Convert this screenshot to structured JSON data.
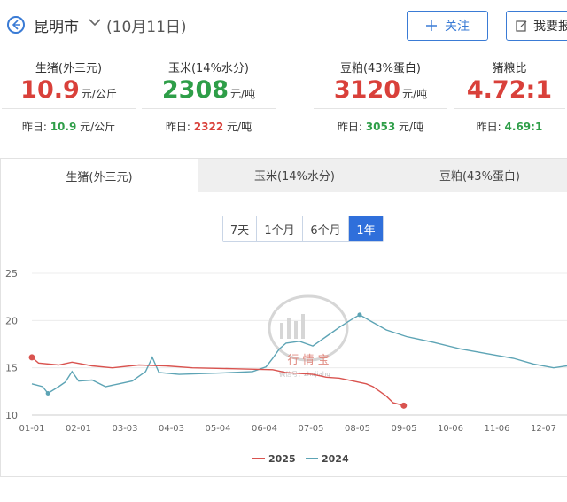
{
  "header": {
    "city": "昆明市",
    "date": "(10月11日)",
    "follow_label": "关注",
    "report_label": "我要报"
  },
  "prices": [
    {
      "name": "生猪(外三元)",
      "value": "10.9",
      "unit": "元/公斤",
      "color": "#d9403a",
      "prev_label": "昨日:",
      "prev_value": "10.9",
      "prev_unit": "元/公斤",
      "prev_color": "#2e9e48"
    },
    {
      "name": "玉米(14%水分)",
      "value": "2308",
      "unit": "元/吨",
      "color": "#2e9e48",
      "prev_label": "昨日:",
      "prev_value": "2322",
      "prev_unit": "元/吨",
      "prev_color": "#d9403a"
    },
    {
      "name": "豆粕(43%蛋白)",
      "value": "3120",
      "unit": "元/吨",
      "color": "#d9403a",
      "prev_label": "昨日:",
      "prev_value": "3053",
      "prev_unit": "元/吨",
      "prev_color": "#2e9e48"
    },
    {
      "name": "猪粮比",
      "value": "4.72:1",
      "unit": "",
      "color": "#d9403a",
      "prev_label": "昨日:",
      "prev_value": "4.69:1",
      "prev_unit": "",
      "prev_color": "#2e9e48"
    }
  ],
  "tabs": [
    {
      "label": "生猪(外三元)",
      "active": true
    },
    {
      "label": "玉米(14%水分)",
      "active": false
    },
    {
      "label": "豆粕(43%蛋白)",
      "active": false
    }
  ],
  "ranges": [
    {
      "label": "7天",
      "active": false
    },
    {
      "label": "1个月",
      "active": false
    },
    {
      "label": "6个月",
      "active": false
    },
    {
      "label": "1年",
      "active": true
    }
  ],
  "watermark": {
    "name": "行 情 宝",
    "sub": "微信号：zhujiahq"
  },
  "chart_data": {
    "type": "line",
    "x_ticks": [
      "01-01",
      "02-01",
      "03-03",
      "04-03",
      "05-04",
      "06-04",
      "07-05",
      "08-05",
      "09-05",
      "10-06",
      "11-06",
      "12-07"
    ],
    "ylim": [
      10,
      25
    ],
    "y_ticks": [
      10,
      15,
      20,
      25
    ],
    "grid": true,
    "legend": "bottom-center",
    "series": [
      {
        "name": "2025",
        "color": "#d9534f",
        "points": [
          [
            0,
            16.1
          ],
          [
            5,
            15.5
          ],
          [
            20,
            15.3
          ],
          [
            30,
            15.6
          ],
          [
            45,
            15.2
          ],
          [
            60,
            15.0
          ],
          [
            80,
            15.3
          ],
          [
            100,
            15.2
          ],
          [
            120,
            15.0
          ],
          [
            150,
            14.9
          ],
          [
            180,
            14.8
          ],
          [
            190,
            14.5
          ],
          [
            200,
            14.4
          ],
          [
            210,
            14.3
          ],
          [
            220,
            14.0
          ],
          [
            230,
            13.9
          ],
          [
            240,
            13.6
          ],
          [
            250,
            13.3
          ],
          [
            255,
            13.0
          ],
          [
            260,
            12.5
          ],
          [
            265,
            12.0
          ],
          [
            270,
            11.3
          ],
          [
            278,
            11.0
          ]
        ]
      },
      {
        "name": "2024",
        "color": "#5da4b5",
        "points": [
          [
            0,
            13.3
          ],
          [
            8,
            13.0
          ],
          [
            12,
            12.3
          ],
          [
            20,
            13.0
          ],
          [
            25,
            13.5
          ],
          [
            30,
            14.6
          ],
          [
            35,
            13.6
          ],
          [
            45,
            13.7
          ],
          [
            55,
            13.0
          ],
          [
            65,
            13.3
          ],
          [
            75,
            13.6
          ],
          [
            85,
            14.6
          ],
          [
            90,
            16.1
          ],
          [
            95,
            14.5
          ],
          [
            110,
            14.3
          ],
          [
            130,
            14.4
          ],
          [
            150,
            14.5
          ],
          [
            165,
            14.6
          ],
          [
            175,
            15.1
          ],
          [
            180,
            16.0
          ],
          [
            185,
            17.0
          ],
          [
            190,
            17.6
          ],
          [
            200,
            17.8
          ],
          [
            210,
            17.3
          ],
          [
            220,
            18.3
          ],
          [
            230,
            19.3
          ],
          [
            240,
            20.2
          ],
          [
            245,
            20.6
          ],
          [
            255,
            19.8
          ],
          [
            265,
            19.0
          ],
          [
            280,
            18.3
          ],
          [
            300,
            17.7
          ],
          [
            320,
            17.0
          ],
          [
            340,
            16.5
          ],
          [
            360,
            16.0
          ],
          [
            375,
            15.4
          ],
          [
            390,
            15.0
          ],
          [
            400,
            15.2
          ]
        ]
      }
    ],
    "x_max": 400
  }
}
